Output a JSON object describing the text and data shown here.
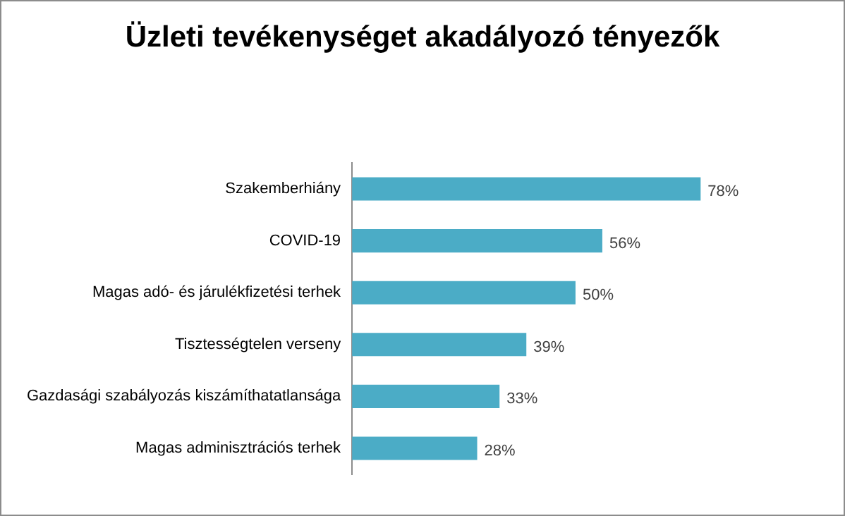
{
  "chart_data": {
    "type": "bar",
    "orientation": "horizontal",
    "title": "Üzleti tevékenységet akadályozó tényezők",
    "categories": [
      "Szakemberhiány",
      "COVID-19",
      "Magas adó- és járulékfizetési terhek",
      "Tisztességtelen verseny",
      "Gazdasági szabályozás kiszámíthatatlansága",
      "Magas adminisztrációs terhek"
    ],
    "values": [
      78,
      56,
      50,
      39,
      33,
      28
    ],
    "value_labels": [
      "78%",
      "56%",
      "50%",
      "39%",
      "33%",
      "28%"
    ],
    "color": "#4bacc6",
    "tick_labels": "y",
    "grid": false,
    "legend": false
  }
}
